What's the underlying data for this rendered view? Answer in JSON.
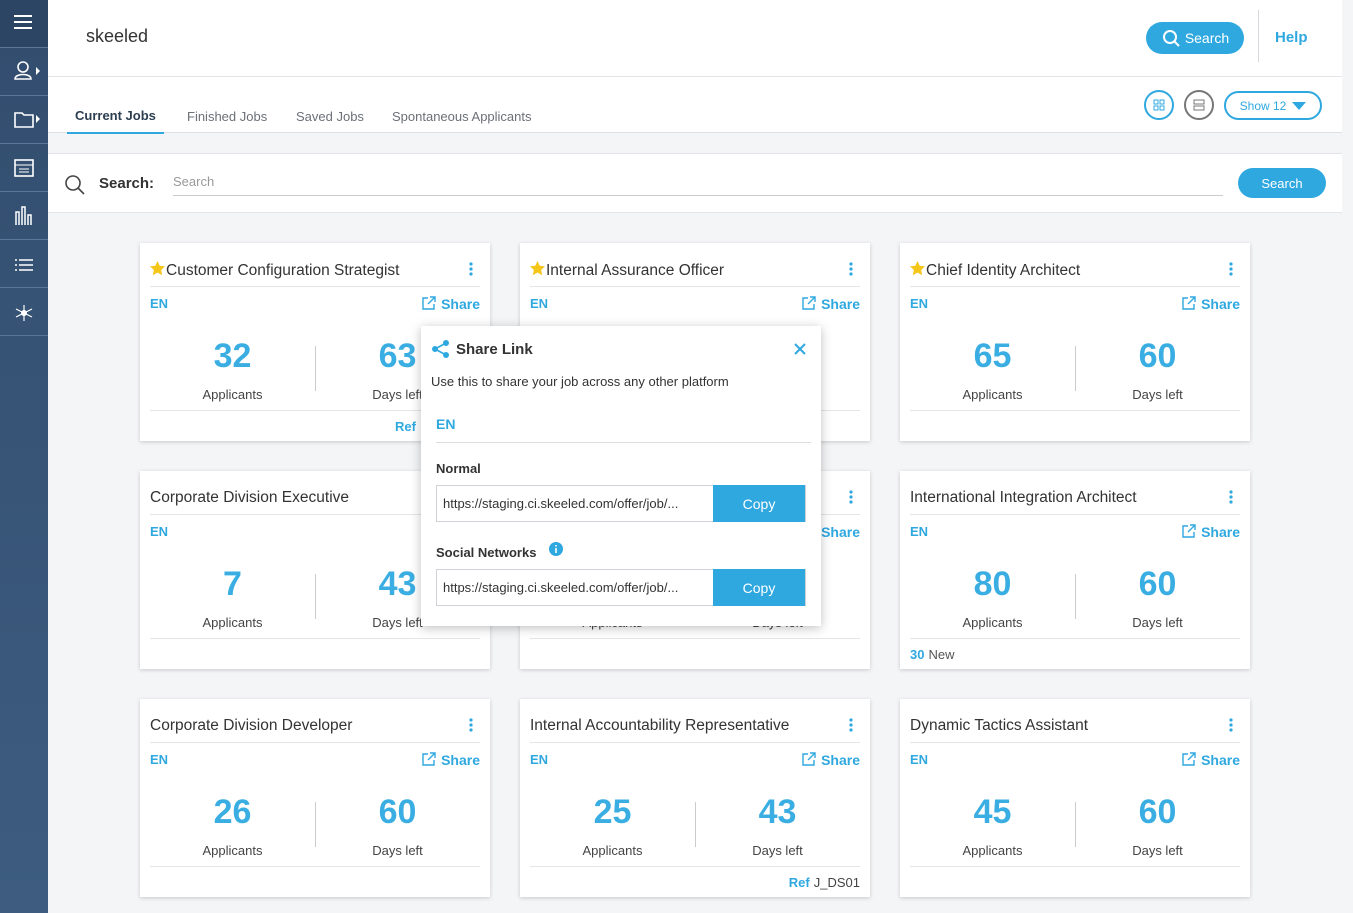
{
  "brand": "skeeled",
  "header": {
    "search_button": "Search",
    "help": "Help"
  },
  "tabs": [
    "Current Jobs",
    "Finished Jobs",
    "Saved Jobs",
    "Spontaneous Applicants"
  ],
  "show": "Show 12",
  "search": {
    "label": "Search:",
    "placeholder": "Search",
    "button": "Search"
  },
  "labels": {
    "lang": "EN",
    "share": "Share",
    "applicants": "Applicants",
    "days": "Days left",
    "ref": "Ref",
    "new": "New"
  },
  "jobs": [
    {
      "title": "Customer Configuration Strategist",
      "starred": true,
      "applicants": 32,
      "days": 63,
      "ref": true
    },
    {
      "title": "Internal Assurance Officer",
      "starred": true
    },
    {
      "title": "Chief Identity Architect",
      "starred": true,
      "applicants": 65,
      "days": 60
    },
    {
      "title": "Corporate Division Executive",
      "applicants": 7,
      "days": 43
    },
    {},
    {
      "title": "International Integration Architect",
      "applicants": 80,
      "days": 60,
      "new_count": 30
    },
    {
      "title": "Corporate Division Developer",
      "applicants": 26,
      "days": 60
    },
    {
      "title": "Internal Accountability Representative",
      "applicants": 25,
      "days": 43,
      "ref": true,
      "ref_value": "J_DS01"
    },
    {
      "title": "Dynamic Tactics Assistant",
      "applicants": 45,
      "days": 60
    }
  ],
  "modal": {
    "title": "Share Link",
    "description": "Use this to share your job across any other platform",
    "lang": "EN",
    "normal_label": "Normal",
    "normal_url": "https://staging.ci.skeeled.com/offer/job/...",
    "copy": "Copy",
    "social_label": "Social Networks",
    "social_url": "https://staging.ci.skeeled.com/offer/job/..."
  }
}
